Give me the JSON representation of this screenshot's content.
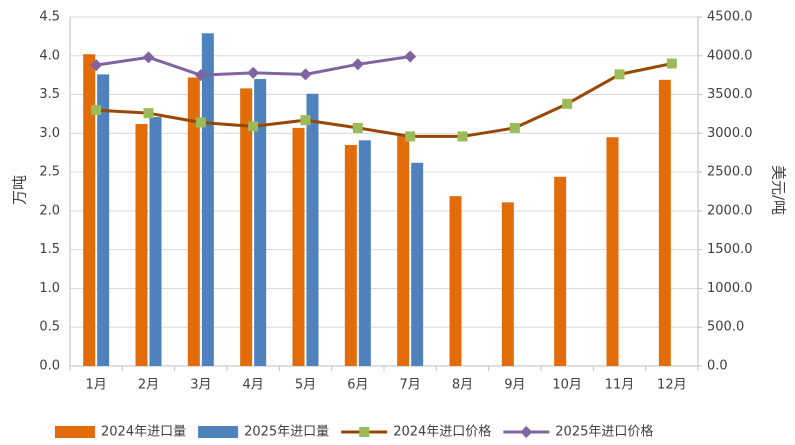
{
  "chart_data": {
    "type": "bar",
    "categories": [
      "1月",
      "2月",
      "3月",
      "4月",
      "5月",
      "6月",
      "7月",
      "8月",
      "9月",
      "10月",
      "11月",
      "12月"
    ],
    "ylabel": "万吨",
    "y2label": "美元/吨",
    "ylim": [
      0,
      4.5
    ],
    "yticks": [
      {
        "value": 0,
        "label": "0.0"
      },
      {
        "value": 0.5,
        "label": "0.5"
      },
      {
        "value": 1,
        "label": "1.0"
      },
      {
        "value": 1.5,
        "label": "1.5"
      },
      {
        "value": 2,
        "label": "2.0"
      },
      {
        "value": 2.5,
        "label": "2.5"
      },
      {
        "value": 3,
        "label": "3.0"
      },
      {
        "value": 3.5,
        "label": "3.5"
      },
      {
        "value": 4,
        "label": "4.0"
      },
      {
        "value": 4.5,
        "label": "4.5"
      }
    ],
    "y2lim": [
      0,
      4500
    ],
    "y2ticks": [
      {
        "value": 0,
        "label": "0.0"
      },
      {
        "value": 500,
        "label": "500.0"
      },
      {
        "value": 1000,
        "label": "1000.0"
      },
      {
        "value": 1500,
        "label": "1500.0"
      },
      {
        "value": 2000,
        "label": "2000.0"
      },
      {
        "value": 2500,
        "label": "2500.0"
      },
      {
        "value": 3000,
        "label": "3000.0"
      },
      {
        "value": 3500,
        "label": "3500.0"
      },
      {
        "value": 4000,
        "label": "4000.0"
      },
      {
        "value": 4500,
        "label": "4500.0"
      }
    ],
    "grid": true,
    "legend": "bottom",
    "series": [
      {
        "name": "2024年进口量",
        "type": "bar",
        "color": "#e36c0a",
        "values": [
          4.02,
          3.12,
          3.72,
          3.58,
          3.07,
          2.85,
          2.99,
          2.19,
          2.11,
          2.44,
          2.95,
          3.69
        ]
      },
      {
        "name": "2025年进口量",
        "type": "bar",
        "color": "#4f81bd",
        "values": [
          3.76,
          3.21,
          4.29,
          3.7,
          3.51,
          2.91,
          2.62,
          null,
          null,
          null,
          null,
          null
        ]
      },
      {
        "name": "2024年进口价格",
        "type": "line",
        "axis": "y2",
        "color": "#974806",
        "marker": "square",
        "marker_color": "#9bbb59",
        "values": [
          3300,
          3260,
          3140,
          3090,
          3170,
          3070,
          2960,
          2960,
          3070,
          3380,
          3760,
          3900
        ]
      },
      {
        "name": "2025年进口价格",
        "type": "line",
        "axis": "y2",
        "color": "#8064a2",
        "marker": "diamond",
        "marker_color": "#8064a2",
        "values": [
          3880,
          3980,
          3750,
          3780,
          3760,
          3890,
          3990,
          null,
          null,
          null,
          null,
          null
        ]
      }
    ]
  }
}
